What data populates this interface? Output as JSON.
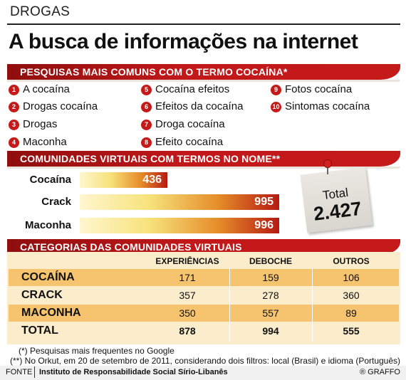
{
  "header": {
    "kicker": "DROGAS",
    "title": "A busca de informações na internet"
  },
  "sections": {
    "search": "PESQUISAS MAIS COMUNS COM O TERMO COCAÍNA*",
    "communities": "COMUNIDADES VIRTUAIS COM TERMOS NO NOME**",
    "categories": "CATEGORIAS DAS COMUNIDADES VIRTUAIS"
  },
  "search_terms": [
    {
      "rank": "1",
      "term": "A cocaína"
    },
    {
      "rank": "2",
      "term": "Drogas cocaína"
    },
    {
      "rank": "3",
      "term": "Drogas"
    },
    {
      "rank": "4",
      "term": "Maconha"
    },
    {
      "rank": "5",
      "term": "Cocaína efeitos"
    },
    {
      "rank": "6",
      "term": "Efeitos da cocaína"
    },
    {
      "rank": "7",
      "term": "Droga cocaína"
    },
    {
      "rank": "8",
      "term": "Efeito cocaína"
    },
    {
      "rank": "9",
      "term": "Fotos cocaína"
    },
    {
      "rank": "10",
      "term": "Sintomas cocaína"
    }
  ],
  "total_note": {
    "title": "Total",
    "value": "2.427"
  },
  "colors": {
    "accent_red": "#c51a1a",
    "table_bg": "#fbeccb",
    "row_highlight": "#f6c36f"
  },
  "chart_data": [
    {
      "type": "bar",
      "orientation": "horizontal",
      "categories": [
        "Cocaína",
        "Crack",
        "Maconha"
      ],
      "values": [
        436,
        995,
        996
      ],
      "value_labels": [
        "436",
        "995",
        "996"
      ],
      "xlim": [
        0,
        996
      ]
    },
    {
      "type": "table",
      "columns": [
        "EXPERIÊNCIAS",
        "DEBOCHE",
        "OUTROS"
      ],
      "rows": [
        {
          "label": "COCAÍNA",
          "values": [
            "171",
            "159",
            "106"
          ]
        },
        {
          "label": "CRACK",
          "values": [
            "357",
            "278",
            "360"
          ]
        },
        {
          "label": "MACONHA",
          "values": [
            "350",
            "557",
            "89"
          ]
        },
        {
          "label": "TOTAL",
          "values": [
            "878",
            "994",
            "555"
          ]
        }
      ]
    }
  ],
  "footnotes": [
    "(*) Pesquisas mais frequentes no Google",
    "(**) No Orkut, em 20 de setembro de 2011, considerando dois filtros: local (Brasil) e idioma (Português)"
  ],
  "source": {
    "label": "FONTE",
    "text": "Instituto de Responsabilidade Social Sírio-Libanês",
    "credit": "® GRAFFO"
  }
}
